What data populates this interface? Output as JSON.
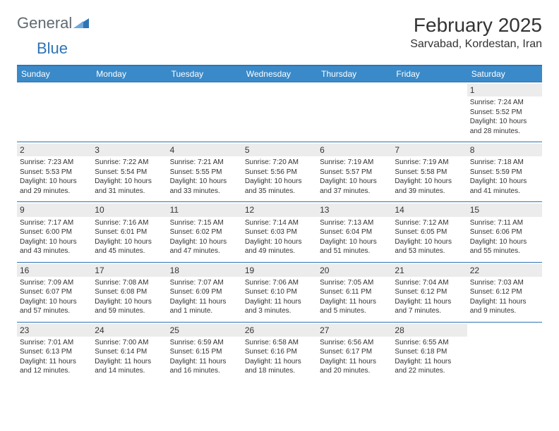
{
  "brand": {
    "part1": "General",
    "part2": "Blue",
    "logo_color": "#2e74b5",
    "text_color": "#5f6a72"
  },
  "title": "February 2025",
  "location": "Sarvabad, Kordestan, Iran",
  "colors": {
    "header_bg": "#3a8ac9",
    "header_border": "#2e74b5",
    "daynum_bg": "#ececec",
    "text": "#333333",
    "page_bg": "#ffffff"
  },
  "day_headers": [
    "Sunday",
    "Monday",
    "Tuesday",
    "Wednesday",
    "Thursday",
    "Friday",
    "Saturday"
  ],
  "weeks": [
    [
      {
        "n": "",
        "sr": "",
        "ss": "",
        "dl": ""
      },
      {
        "n": "",
        "sr": "",
        "ss": "",
        "dl": ""
      },
      {
        "n": "",
        "sr": "",
        "ss": "",
        "dl": ""
      },
      {
        "n": "",
        "sr": "",
        "ss": "",
        "dl": ""
      },
      {
        "n": "",
        "sr": "",
        "ss": "",
        "dl": ""
      },
      {
        "n": "",
        "sr": "",
        "ss": "",
        "dl": ""
      },
      {
        "n": "1",
        "sr": "Sunrise: 7:24 AM",
        "ss": "Sunset: 5:52 PM",
        "dl": "Daylight: 10 hours and 28 minutes."
      }
    ],
    [
      {
        "n": "2",
        "sr": "Sunrise: 7:23 AM",
        "ss": "Sunset: 5:53 PM",
        "dl": "Daylight: 10 hours and 29 minutes."
      },
      {
        "n": "3",
        "sr": "Sunrise: 7:22 AM",
        "ss": "Sunset: 5:54 PM",
        "dl": "Daylight: 10 hours and 31 minutes."
      },
      {
        "n": "4",
        "sr": "Sunrise: 7:21 AM",
        "ss": "Sunset: 5:55 PM",
        "dl": "Daylight: 10 hours and 33 minutes."
      },
      {
        "n": "5",
        "sr": "Sunrise: 7:20 AM",
        "ss": "Sunset: 5:56 PM",
        "dl": "Daylight: 10 hours and 35 minutes."
      },
      {
        "n": "6",
        "sr": "Sunrise: 7:19 AM",
        "ss": "Sunset: 5:57 PM",
        "dl": "Daylight: 10 hours and 37 minutes."
      },
      {
        "n": "7",
        "sr": "Sunrise: 7:19 AM",
        "ss": "Sunset: 5:58 PM",
        "dl": "Daylight: 10 hours and 39 minutes."
      },
      {
        "n": "8",
        "sr": "Sunrise: 7:18 AM",
        "ss": "Sunset: 5:59 PM",
        "dl": "Daylight: 10 hours and 41 minutes."
      }
    ],
    [
      {
        "n": "9",
        "sr": "Sunrise: 7:17 AM",
        "ss": "Sunset: 6:00 PM",
        "dl": "Daylight: 10 hours and 43 minutes."
      },
      {
        "n": "10",
        "sr": "Sunrise: 7:16 AM",
        "ss": "Sunset: 6:01 PM",
        "dl": "Daylight: 10 hours and 45 minutes."
      },
      {
        "n": "11",
        "sr": "Sunrise: 7:15 AM",
        "ss": "Sunset: 6:02 PM",
        "dl": "Daylight: 10 hours and 47 minutes."
      },
      {
        "n": "12",
        "sr": "Sunrise: 7:14 AM",
        "ss": "Sunset: 6:03 PM",
        "dl": "Daylight: 10 hours and 49 minutes."
      },
      {
        "n": "13",
        "sr": "Sunrise: 7:13 AM",
        "ss": "Sunset: 6:04 PM",
        "dl": "Daylight: 10 hours and 51 minutes."
      },
      {
        "n": "14",
        "sr": "Sunrise: 7:12 AM",
        "ss": "Sunset: 6:05 PM",
        "dl": "Daylight: 10 hours and 53 minutes."
      },
      {
        "n": "15",
        "sr": "Sunrise: 7:11 AM",
        "ss": "Sunset: 6:06 PM",
        "dl": "Daylight: 10 hours and 55 minutes."
      }
    ],
    [
      {
        "n": "16",
        "sr": "Sunrise: 7:09 AM",
        "ss": "Sunset: 6:07 PM",
        "dl": "Daylight: 10 hours and 57 minutes."
      },
      {
        "n": "17",
        "sr": "Sunrise: 7:08 AM",
        "ss": "Sunset: 6:08 PM",
        "dl": "Daylight: 10 hours and 59 minutes."
      },
      {
        "n": "18",
        "sr": "Sunrise: 7:07 AM",
        "ss": "Sunset: 6:09 PM",
        "dl": "Daylight: 11 hours and 1 minute."
      },
      {
        "n": "19",
        "sr": "Sunrise: 7:06 AM",
        "ss": "Sunset: 6:10 PM",
        "dl": "Daylight: 11 hours and 3 minutes."
      },
      {
        "n": "20",
        "sr": "Sunrise: 7:05 AM",
        "ss": "Sunset: 6:11 PM",
        "dl": "Daylight: 11 hours and 5 minutes."
      },
      {
        "n": "21",
        "sr": "Sunrise: 7:04 AM",
        "ss": "Sunset: 6:12 PM",
        "dl": "Daylight: 11 hours and 7 minutes."
      },
      {
        "n": "22",
        "sr": "Sunrise: 7:03 AM",
        "ss": "Sunset: 6:12 PM",
        "dl": "Daylight: 11 hours and 9 minutes."
      }
    ],
    [
      {
        "n": "23",
        "sr": "Sunrise: 7:01 AM",
        "ss": "Sunset: 6:13 PM",
        "dl": "Daylight: 11 hours and 12 minutes."
      },
      {
        "n": "24",
        "sr": "Sunrise: 7:00 AM",
        "ss": "Sunset: 6:14 PM",
        "dl": "Daylight: 11 hours and 14 minutes."
      },
      {
        "n": "25",
        "sr": "Sunrise: 6:59 AM",
        "ss": "Sunset: 6:15 PM",
        "dl": "Daylight: 11 hours and 16 minutes."
      },
      {
        "n": "26",
        "sr": "Sunrise: 6:58 AM",
        "ss": "Sunset: 6:16 PM",
        "dl": "Daylight: 11 hours and 18 minutes."
      },
      {
        "n": "27",
        "sr": "Sunrise: 6:56 AM",
        "ss": "Sunset: 6:17 PM",
        "dl": "Daylight: 11 hours and 20 minutes."
      },
      {
        "n": "28",
        "sr": "Sunrise: 6:55 AM",
        "ss": "Sunset: 6:18 PM",
        "dl": "Daylight: 11 hours and 22 minutes."
      },
      {
        "n": "",
        "sr": "",
        "ss": "",
        "dl": ""
      }
    ]
  ]
}
